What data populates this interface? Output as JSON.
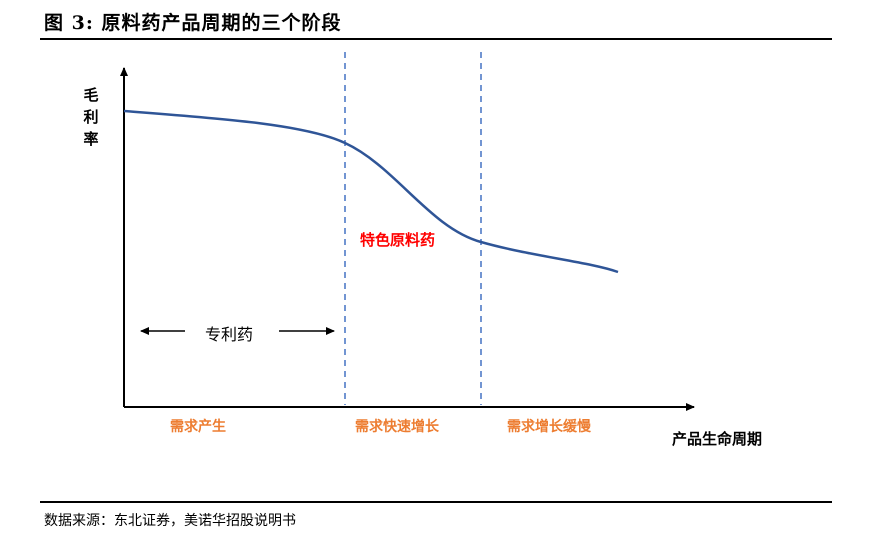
{
  "figure": {
    "title": "图  3:  原料药产品周期的三个阶段",
    "source": "数据来源：东北证券，美诺华招股说明书"
  },
  "diagram": {
    "y_axis_label": "毛利率",
    "x_axis_label": "产品生命周期",
    "phases": [
      "需求产生",
      "需求快速增长",
      "需求增长缓慢"
    ],
    "curve_label": "特色原料药",
    "arrow_label": "专利药"
  },
  "colors": {
    "curve": "#2F5597",
    "divider": "#4472C4",
    "phase_text": "#ED7D31",
    "curve_label": "#FF0000",
    "axis": "#000000"
  }
}
